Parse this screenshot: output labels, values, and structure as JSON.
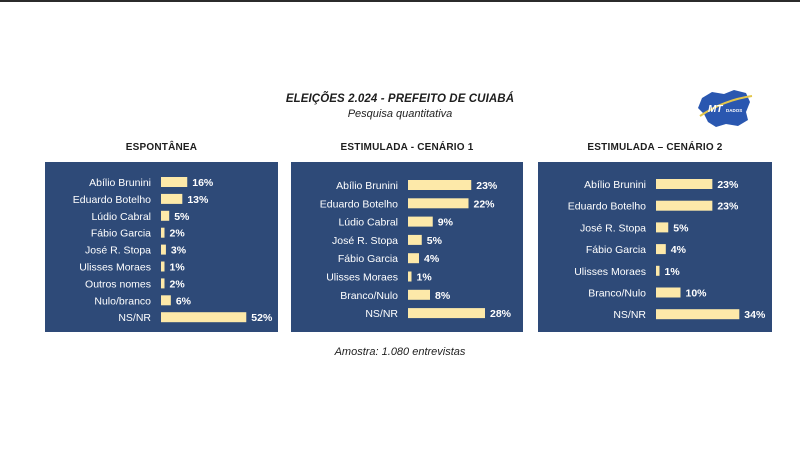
{
  "header": {
    "title": "ELEIÇÕES 2.024  -  PREFEITO DE CUIABÁ",
    "subtitle": "Pesquisa quantitativa"
  },
  "logo": {
    "text_main": "MT",
    "text_sub": "DADOS",
    "icon": "mato-grosso-map-logo"
  },
  "footnote": "Amostra: 1.080 entrevistas",
  "colors": {
    "panel_bg": "#2e4a78",
    "bar": "#fde9a9",
    "label_text": "#ffffff"
  },
  "chart_data": [
    {
      "type": "bar",
      "orientation": "horizontal",
      "title": "ESPONTÂNEA",
      "categories": [
        "Abílio Brunini",
        "Eduardo Botelho",
        "Lúdio Cabral",
        "Fábio Garcia",
        "José R. Stopa",
        "Ulisses Moraes",
        "Outros nomes",
        "Nulo/branco",
        "NS/NR"
      ],
      "values": [
        16,
        13,
        5,
        2,
        3,
        1,
        2,
        6,
        52
      ],
      "value_labels": [
        "16%",
        "13%",
        "5%",
        "2%",
        "3%",
        "1%",
        "2%",
        "6%",
        "52%"
      ],
      "unit": "%"
    },
    {
      "type": "bar",
      "orientation": "horizontal",
      "title": "ESTIMULADA - CENÁRIO 1",
      "categories": [
        "Abílio Brunini",
        "Eduardo Botelho",
        "Lúdio Cabral",
        "José R. Stopa",
        "Fábio Garcia",
        "Ulisses Moraes",
        "Branco/Nulo",
        "NS/NR"
      ],
      "values": [
        23,
        22,
        9,
        5,
        4,
        1,
        8,
        28
      ],
      "value_labels": [
        "23%",
        "22%",
        "9%",
        "5%",
        "4%",
        "1%",
        "8%",
        "28%"
      ],
      "unit": "%"
    },
    {
      "type": "bar",
      "orientation": "horizontal",
      "title": "ESTIMULADA – CENÁRIO 2",
      "categories": [
        "Abílio Brunini",
        "Eduardo Botelho",
        "José R. Stopa",
        "Fábio Garcia",
        "Ulisses Moraes",
        "Branco/Nulo",
        "NS/NR"
      ],
      "values": [
        23,
        23,
        5,
        4,
        1,
        10,
        34
      ],
      "value_labels": [
        "23%",
        "23%",
        "5%",
        "4%",
        "1%",
        "10%",
        "34%"
      ],
      "unit": "%"
    }
  ]
}
